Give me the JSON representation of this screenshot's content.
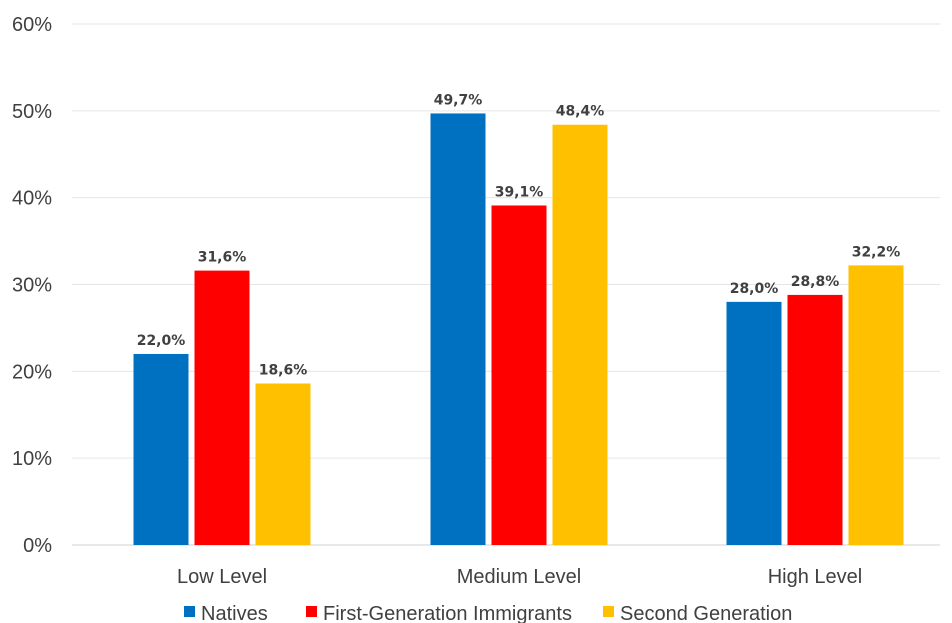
{
  "chart_data": {
    "type": "bar",
    "categories": [
      "Low Level",
      "Medium Level",
      "High Level"
    ],
    "series": [
      {
        "name": "Natives",
        "color": "#0070C0",
        "values": [
          22.0,
          49.7,
          28.0
        ],
        "labels": [
          "22,0%",
          "49,7%",
          "28,0%"
        ]
      },
      {
        "name": "First-Generation Immigrants",
        "color": "#FF0000",
        "values": [
          31.6,
          39.1,
          28.8
        ],
        "labels": [
          "31,6%",
          "39,1%",
          "28,8%"
        ]
      },
      {
        "name": "Second Generation",
        "color": "#FFC000",
        "values": [
          18.6,
          48.4,
          32.2
        ],
        "labels": [
          "18,6%",
          "48,4%",
          "32,2%"
        ]
      }
    ],
    "yticks": [
      "0%",
      "10%",
      "20%",
      "30%",
      "40%",
      "50%",
      "60%"
    ],
    "ylim": [
      0,
      60
    ],
    "grid": true,
    "legend_position": "bottom"
  }
}
